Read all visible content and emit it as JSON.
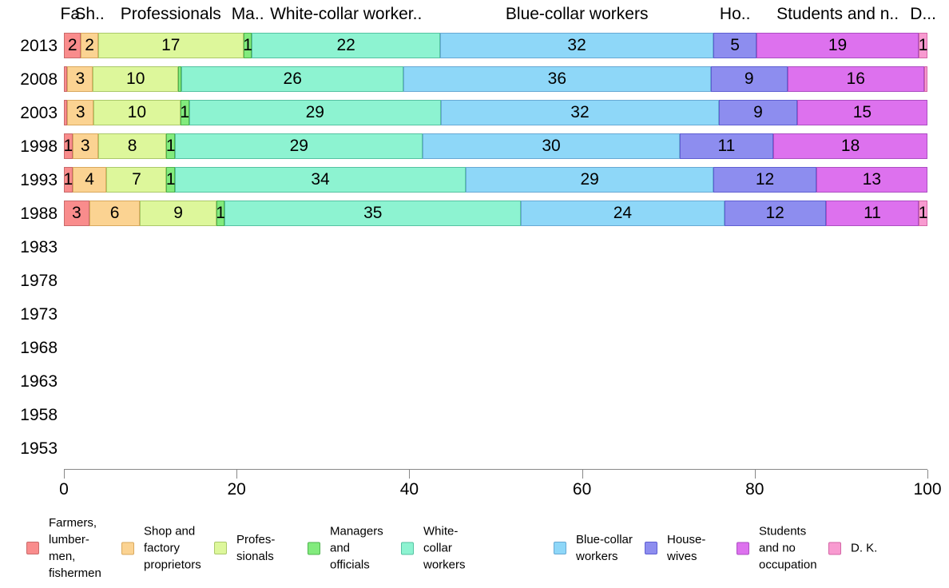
{
  "chart_data": {
    "type": "bar",
    "stacked": true,
    "orientation": "horizontal",
    "title": "",
    "x_axis": {
      "min": 0,
      "max": 100,
      "ticks": [
        0,
        20,
        40,
        60,
        80,
        100
      ]
    },
    "legend_position": "bottom",
    "grid": false,
    "categories": [
      {
        "key": "farmers",
        "header": "Fa.",
        "legend": "Farmers,\nlumber-\nmen,\nfishermen",
        "fill": "#F98C8C",
        "border": "#C96A6A"
      },
      {
        "key": "shop",
        "header": "Sh..",
        "legend": "Shop and\nfactory\nproprietors",
        "fill": "#FBD392",
        "border": "#D9A95E"
      },
      {
        "key": "professionals",
        "header": "Professionals",
        "legend": "Profes-\nsionals",
        "fill": "#DDF79B",
        "border": "#ABC96A"
      },
      {
        "key": "managers",
        "header": "Ma..",
        "legend": "Managers\nand\nofficials",
        "fill": "#82EB7D",
        "border": "#4EB44E"
      },
      {
        "key": "white-collar",
        "header": "White-collar worker..",
        "legend": "White-\ncollar\nworkers",
        "fill": "#8DF3D1",
        "border": "#55C2A2"
      },
      {
        "key": "blue-collar",
        "header": "Blue-collar workers",
        "legend": "Blue-collar\nworkers",
        "fill": "#8ED7F8",
        "border": "#67A9D4"
      },
      {
        "key": "housewives",
        "header": "Ho..",
        "legend": "House-\nwives",
        "fill": "#8D8DEF",
        "border": "#5F5FD2"
      },
      {
        "key": "students",
        "header": "Students and n..",
        "legend": "Students\nand no\noccupation",
        "fill": "#DD71EE",
        "border": "#AC4EC2"
      },
      {
        "key": "dk",
        "header": "D...",
        "legend": "D. K.",
        "fill": "#F89AD0",
        "border": "#D466A6"
      }
    ],
    "rows": [
      {
        "year": "2013",
        "values": [
          2,
          2,
          17,
          1,
          22,
          32,
          5,
          19,
          1
        ],
        "labels": [
          "2",
          "2",
          "17",
          "1",
          "22",
          "32",
          "5",
          "19",
          "1"
        ]
      },
      {
        "year": "2008",
        "values": [
          0.4,
          3,
          10,
          0.4,
          26,
          36,
          9,
          16,
          0.4
        ],
        "labels": [
          "",
          "3",
          "10",
          "",
          "26",
          "36",
          "9",
          "16",
          ""
        ]
      },
      {
        "year": "2003",
        "values": [
          0.4,
          3,
          10,
          1,
          29,
          32,
          9,
          15,
          0
        ],
        "labels": [
          "",
          "3",
          "10",
          "1",
          "29",
          "32",
          "9",
          "15",
          ""
        ]
      },
      {
        "year": "1998",
        "values": [
          1,
          3,
          8,
          1,
          29,
          30,
          11,
          18,
          0
        ],
        "labels": [
          "1",
          "3",
          "8",
          "1",
          "29",
          "30",
          "11",
          "18",
          ""
        ]
      },
      {
        "year": "1993",
        "values": [
          1,
          4,
          7,
          1,
          34,
          29,
          12,
          13,
          0
        ],
        "labels": [
          "1",
          "4",
          "7",
          "1",
          "34",
          "29",
          "12",
          "13",
          ""
        ]
      },
      {
        "year": "1988",
        "values": [
          3,
          6,
          9,
          1,
          35,
          24,
          12,
          11,
          1
        ],
        "labels": [
          "3",
          "6",
          "9",
          "1",
          "35",
          "24",
          "12",
          "11",
          "1"
        ]
      },
      {
        "year": "1983",
        "values": [],
        "labels": []
      },
      {
        "year": "1978",
        "values": [],
        "labels": []
      },
      {
        "year": "1973",
        "values": [],
        "labels": []
      },
      {
        "year": "1968",
        "values": [],
        "labels": []
      },
      {
        "year": "1963",
        "values": [],
        "labels": []
      },
      {
        "year": "1958",
        "values": [],
        "labels": []
      },
      {
        "year": "1953",
        "values": [],
        "labels": []
      }
    ]
  }
}
